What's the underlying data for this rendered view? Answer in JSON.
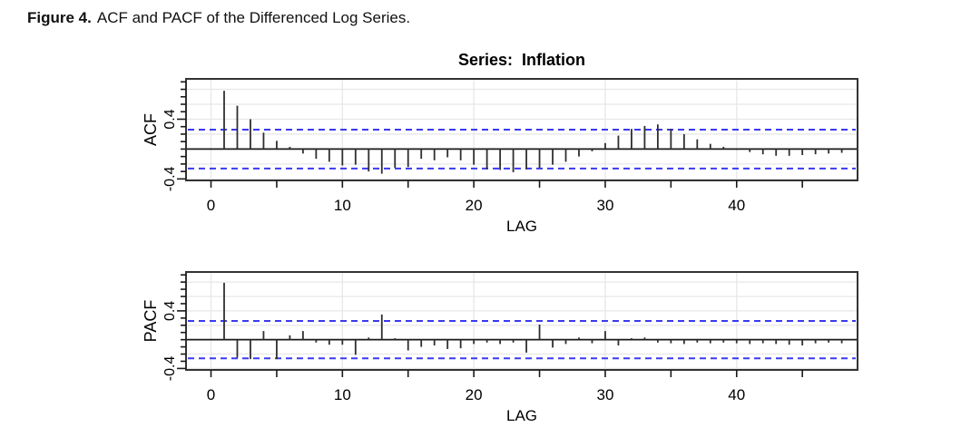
{
  "figure": {
    "caption_prefix": "Figure 4.",
    "caption_text": "ACF and PACF of the Differenced Log Series."
  },
  "colors": {
    "confidence": "#3a3af0",
    "spike": "#2f2f2f",
    "axis": "#1a1a1a",
    "frame": "#333333",
    "grid": "#e7e7e7",
    "background": "#ffffff",
    "text": "#000000"
  },
  "chart_data": [
    {
      "type": "bar",
      "style": "stem",
      "panel": "ACF",
      "title": "Series:  Inflation",
      "xlabel": "LAG",
      "ylabel": "ACF",
      "x": [
        1,
        2,
        3,
        4,
        5,
        6,
        7,
        8,
        9,
        10,
        11,
        12,
        13,
        14,
        15,
        16,
        17,
        18,
        19,
        20,
        21,
        22,
        23,
        24,
        25,
        26,
        27,
        28,
        29,
        30,
        31,
        32,
        33,
        34,
        35,
        36,
        37,
        38,
        39,
        40,
        41,
        42,
        43,
        44,
        45,
        46,
        47,
        48
      ],
      "values": [
        0.78,
        0.58,
        0.4,
        0.22,
        0.11,
        0.03,
        -0.06,
        -0.13,
        -0.17,
        -0.22,
        -0.21,
        -0.3,
        -0.33,
        -0.25,
        -0.24,
        -0.13,
        -0.15,
        -0.11,
        -0.15,
        -0.21,
        -0.27,
        -0.28,
        -0.31,
        -0.27,
        -0.25,
        -0.21,
        -0.17,
        -0.1,
        -0.03,
        0.08,
        0.18,
        0.27,
        0.31,
        0.33,
        0.27,
        0.2,
        0.13,
        0.07,
        0.03,
        -0.01,
        -0.04,
        -0.07,
        -0.09,
        -0.09,
        -0.08,
        -0.07,
        -0.06,
        -0.05
      ],
      "xlim": [
        -1.9,
        49.2
      ],
      "ylim": [
        -0.42,
        0.94
      ],
      "confidence_level": 0.26,
      "grid": true,
      "x_gridlines": [
        0,
        10,
        20,
        30,
        40
      ],
      "y_gridlines": [
        -0.4,
        -0.2,
        0.2,
        0.4,
        0.6,
        0.8
      ],
      "x_ticks": [
        0,
        5,
        10,
        15,
        20,
        25,
        30,
        35,
        40,
        45
      ],
      "x_tick_labels": [
        {
          "value": 0,
          "label": "0"
        },
        {
          "value": 10,
          "label": "10"
        },
        {
          "value": 20,
          "label": "20"
        },
        {
          "value": 30,
          "label": "30"
        },
        {
          "value": 40,
          "label": "40"
        }
      ],
      "y_tick_range": [
        -0.4,
        0.9
      ],
      "y_tick_step": 0.1,
      "y_tick_labels": [
        {
          "value": 0.4,
          "label": "0.4"
        },
        {
          "value": -0.4,
          "label": "-0.4"
        }
      ]
    },
    {
      "type": "bar",
      "style": "stem",
      "panel": "PACF",
      "title": "",
      "xlabel": "LAG",
      "ylabel": "PACF",
      "x": [
        1,
        2,
        3,
        4,
        5,
        6,
        7,
        8,
        9,
        10,
        11,
        12,
        13,
        14,
        15,
        16,
        17,
        18,
        19,
        20,
        21,
        22,
        23,
        24,
        25,
        26,
        27,
        28,
        29,
        30,
        31,
        32,
        33,
        34,
        35,
        36,
        37,
        38,
        39,
        40,
        41,
        42,
        43,
        44,
        45,
        46,
        47,
        48
      ],
      "values": [
        0.79,
        -0.25,
        -0.27,
        0.12,
        -0.27,
        0.06,
        0.12,
        -0.04,
        -0.07,
        -0.07,
        -0.21,
        0.03,
        0.35,
        0.02,
        -0.15,
        -0.1,
        -0.08,
        -0.13,
        -0.12,
        -0.06,
        -0.04,
        -0.06,
        -0.04,
        -0.18,
        0.21,
        -0.11,
        -0.06,
        0.03,
        -0.05,
        0.12,
        -0.08,
        0.02,
        0.03,
        -0.04,
        -0.05,
        -0.06,
        -0.04,
        -0.05,
        -0.04,
        -0.05,
        -0.06,
        -0.05,
        -0.06,
        -0.07,
        -0.08,
        -0.05,
        -0.04,
        -0.05
      ],
      "xlim": [
        -1.9,
        49.2
      ],
      "ylim": [
        -0.42,
        0.94
      ],
      "confidence_level": 0.26,
      "grid": true,
      "x_gridlines": [
        0,
        10,
        20,
        30,
        40
      ],
      "y_gridlines": [
        -0.4,
        -0.2,
        0.2,
        0.4,
        0.6,
        0.8
      ],
      "x_ticks": [
        0,
        5,
        10,
        15,
        20,
        25,
        30,
        35,
        40,
        45
      ],
      "x_tick_labels": [
        {
          "value": 0,
          "label": "0"
        },
        {
          "value": 10,
          "label": "10"
        },
        {
          "value": 20,
          "label": "20"
        },
        {
          "value": 30,
          "label": "30"
        },
        {
          "value": 40,
          "label": "40"
        }
      ],
      "y_tick_range": [
        -0.4,
        0.9
      ],
      "y_tick_step": 0.1,
      "y_tick_labels": [
        {
          "value": 0.4,
          "label": "0.4"
        },
        {
          "value": -0.4,
          "label": "-0.4"
        }
      ]
    }
  ]
}
